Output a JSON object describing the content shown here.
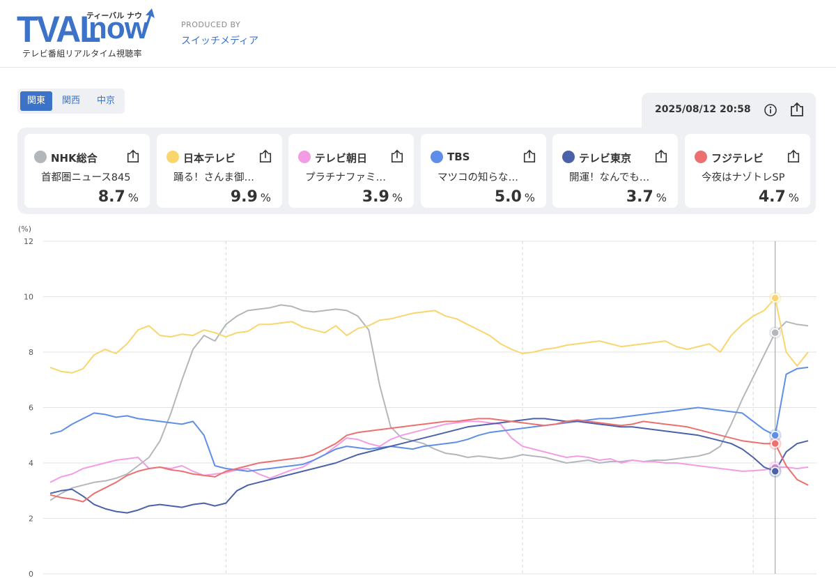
{
  "header": {
    "logo_tval": "TVAL",
    "logo_now": "now",
    "logo_kana": "ティーバル ナウ",
    "logo_subtitle": "テレビ番組リアルタイム視聴率",
    "produced_by": "PRODUCED BY",
    "producer": "スイッチメディア"
  },
  "regions": [
    {
      "label": "関東",
      "active": true
    },
    {
      "label": "関西",
      "active": false
    },
    {
      "label": "中京",
      "active": false
    }
  ],
  "timestamp": "2025/08/12 20:58",
  "icons": {
    "info": "info-icon",
    "share": "share-icon"
  },
  "channels": [
    {
      "name": "NHK総合",
      "program": "首都圏ニュース845",
      "rating": "8.7",
      "unit": "%",
      "color": "#b3b6bb"
    },
    {
      "name": "日本テレビ",
      "program": "踊る！さんま御…",
      "rating": "9.9",
      "unit": "%",
      "color": "#f8d66d"
    },
    {
      "name": "テレビ朝日",
      "program": "プラチナファミ…",
      "rating": "3.9",
      "unit": "%",
      "color": "#f29ce3"
    },
    {
      "name": "TBS",
      "program": "マツコの知らな…",
      "rating": "5.0",
      "unit": "%",
      "color": "#5f8ee8"
    },
    {
      "name": "テレビ東京",
      "program": "開運！なんでも…",
      "rating": "3.7",
      "unit": "%",
      "color": "#4b62a8"
    },
    {
      "name": "フジテレビ",
      "program": "今夜はナゾトレSP",
      "rating": "4.7",
      "unit": "%",
      "color": "#ec7070"
    }
  ],
  "chart_data": {
    "type": "line",
    "ylabel": "(%)",
    "ylim": [
      0,
      12
    ],
    "yticks": [
      0,
      2,
      4,
      6,
      8,
      10,
      12
    ],
    "x": [
      0,
      4,
      8,
      12,
      16,
      20,
      24,
      28,
      32,
      36,
      40,
      44,
      48,
      52,
      56,
      60,
      64,
      68,
      72,
      76,
      80,
      84,
      88,
      92,
      96,
      100,
      104,
      108,
      112,
      116,
      120,
      124,
      128,
      132,
      136,
      140,
      144,
      148,
      152,
      156,
      160,
      164,
      168,
      172,
      176,
      180,
      184,
      188,
      192,
      196,
      200,
      204,
      208,
      212,
      216,
      220,
      224,
      228,
      232,
      236,
      240,
      244,
      248,
      252,
      256,
      260,
      264,
      268,
      272,
      276
    ],
    "current_index": 66,
    "series": [
      {
        "name": "NHK総合",
        "color": "#b3b6bb",
        "values": [
          2.65,
          2.9,
          3.1,
          3.2,
          3.3,
          3.35,
          3.45,
          3.6,
          3.9,
          4.2,
          4.8,
          5.8,
          7.0,
          8.1,
          8.6,
          8.4,
          9.0,
          9.3,
          9.5,
          9.55,
          9.6,
          9.7,
          9.65,
          9.5,
          9.45,
          9.5,
          9.55,
          9.5,
          9.3,
          8.8,
          6.8,
          5.3,
          4.9,
          4.8,
          4.7,
          4.5,
          4.35,
          4.3,
          4.2,
          4.25,
          4.2,
          4.15,
          4.2,
          4.3,
          4.25,
          4.2,
          4.1,
          4.0,
          4.05,
          4.1,
          4.0,
          4.05,
          4.05,
          4.1,
          4.05,
          4.1,
          4.1,
          4.15,
          4.2,
          4.25,
          4.35,
          4.6,
          5.4,
          6.3,
          7.1,
          7.9,
          8.7,
          9.1,
          9.0,
          8.95
        ]
      },
      {
        "name": "日本テレビ",
        "color": "#f8d66d",
        "values": [
          7.45,
          7.3,
          7.25,
          7.4,
          7.9,
          8.1,
          7.95,
          8.3,
          8.8,
          8.95,
          8.6,
          8.55,
          8.65,
          8.6,
          8.8,
          8.7,
          8.55,
          8.7,
          8.75,
          9.0,
          9.0,
          9.05,
          9.1,
          8.9,
          8.8,
          8.7,
          8.95,
          8.6,
          8.85,
          8.95,
          9.15,
          9.2,
          9.3,
          9.4,
          9.45,
          9.5,
          9.3,
          9.2,
          9.0,
          8.8,
          8.6,
          8.3,
          8.1,
          7.95,
          8.0,
          8.1,
          8.15,
          8.25,
          8.3,
          8.35,
          8.4,
          8.3,
          8.2,
          8.25,
          8.3,
          8.35,
          8.4,
          8.2,
          8.1,
          8.2,
          8.3,
          8.0,
          8.6,
          9.0,
          9.3,
          9.5,
          9.95,
          8.0,
          7.5,
          8.0
        ]
      },
      {
        "name": "テレビ朝日",
        "color": "#f29ce3",
        "values": [
          3.3,
          3.5,
          3.6,
          3.8,
          3.9,
          4.0,
          4.1,
          4.15,
          4.2,
          3.8,
          3.85,
          3.8,
          3.9,
          3.7,
          3.55,
          3.6,
          3.65,
          3.75,
          3.8,
          3.6,
          3.45,
          3.6,
          3.75,
          3.85,
          4.1,
          4.3,
          4.6,
          4.9,
          4.85,
          4.7,
          4.6,
          4.85,
          5.0,
          5.1,
          5.2,
          5.3,
          5.4,
          5.45,
          5.5,
          5.5,
          5.45,
          5.4,
          4.9,
          4.6,
          4.5,
          4.4,
          4.3,
          4.2,
          4.25,
          4.2,
          4.1,
          4.15,
          4.0,
          4.1,
          4.05,
          4.05,
          4.0,
          4.0,
          3.95,
          3.9,
          3.85,
          3.8,
          3.75,
          3.7,
          3.72,
          3.75,
          3.85,
          3.85,
          3.8,
          3.85
        ]
      },
      {
        "name": "TBS",
        "color": "#5f8ee8",
        "values": [
          5.05,
          5.15,
          5.4,
          5.6,
          5.8,
          5.75,
          5.65,
          5.7,
          5.6,
          5.55,
          5.5,
          5.45,
          5.4,
          5.5,
          5.0,
          3.9,
          3.8,
          3.75,
          3.7,
          3.75,
          3.8,
          3.85,
          3.9,
          3.95,
          4.1,
          4.3,
          4.5,
          4.6,
          4.55,
          4.5,
          4.55,
          4.6,
          4.55,
          4.5,
          4.6,
          4.65,
          4.7,
          4.75,
          4.85,
          5.0,
          5.1,
          5.15,
          5.2,
          5.25,
          5.3,
          5.35,
          5.4,
          5.45,
          5.5,
          5.55,
          5.6,
          5.6,
          5.65,
          5.7,
          5.75,
          5.8,
          5.85,
          5.9,
          5.95,
          6.0,
          5.95,
          5.9,
          5.85,
          5.8,
          5.5,
          5.2,
          5.0,
          7.2,
          7.4,
          7.45
        ]
      },
      {
        "name": "テレビ東京",
        "color": "#4b62a8",
        "values": [
          2.9,
          3.0,
          3.05,
          2.8,
          2.5,
          2.35,
          2.25,
          2.2,
          2.3,
          2.45,
          2.5,
          2.45,
          2.4,
          2.5,
          2.55,
          2.45,
          2.55,
          3.0,
          3.2,
          3.3,
          3.4,
          3.5,
          3.6,
          3.7,
          3.8,
          3.9,
          4.0,
          4.15,
          4.3,
          4.4,
          4.5,
          4.6,
          4.7,
          4.8,
          4.9,
          5.0,
          5.1,
          5.2,
          5.3,
          5.35,
          5.4,
          5.45,
          5.5,
          5.55,
          5.6,
          5.6,
          5.55,
          5.5,
          5.5,
          5.45,
          5.4,
          5.35,
          5.3,
          5.3,
          5.25,
          5.2,
          5.15,
          5.1,
          5.05,
          5.0,
          4.9,
          4.8,
          4.7,
          4.5,
          4.2,
          3.85,
          3.7,
          4.4,
          4.7,
          4.8
        ]
      },
      {
        "name": "フジテレビ",
        "color": "#ec7070",
        "values": [
          2.85,
          2.75,
          2.7,
          2.6,
          2.9,
          3.1,
          3.3,
          3.55,
          3.7,
          3.8,
          3.85,
          3.75,
          3.7,
          3.6,
          3.55,
          3.5,
          3.7,
          3.8,
          3.9,
          4.0,
          4.05,
          4.1,
          4.15,
          4.2,
          4.3,
          4.5,
          4.7,
          5.0,
          5.1,
          5.15,
          5.2,
          5.25,
          5.3,
          5.35,
          5.4,
          5.45,
          5.5,
          5.5,
          5.55,
          5.6,
          5.6,
          5.55,
          5.5,
          5.45,
          5.4,
          5.35,
          5.4,
          5.5,
          5.55,
          5.5,
          5.45,
          5.4,
          5.35,
          5.4,
          5.5,
          5.45,
          5.4,
          5.35,
          5.3,
          5.2,
          5.1,
          5.0,
          4.9,
          4.8,
          4.75,
          4.7,
          4.7,
          3.9,
          3.4,
          3.2
        ]
      }
    ]
  }
}
